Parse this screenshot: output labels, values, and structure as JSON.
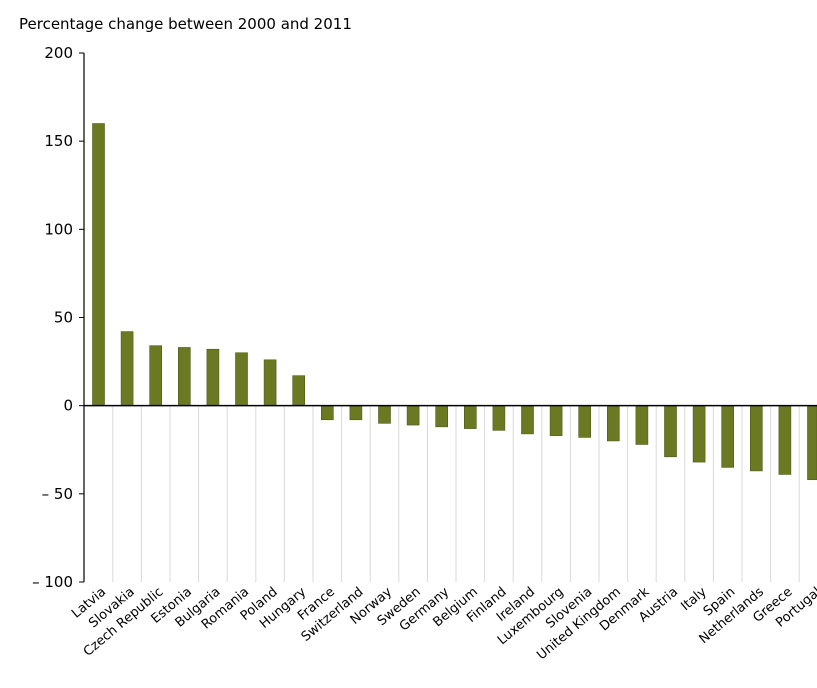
{
  "chart_data": {
    "type": "bar",
    "ylabel": "Percentage change between 2000 and 2011",
    "ylim": [
      -100,
      200
    ],
    "yticks": [
      200,
      150,
      100,
      50,
      0,
      -50,
      -100
    ],
    "ytick_labels": [
      "200",
      "150",
      "100",
      "50",
      "0",
      "– 50",
      "– 100"
    ],
    "categories": [
      "Latvia",
      "Slovakia",
      "Czech Republic",
      "Estonia",
      "Bulgaria",
      "Romania",
      "Poland",
      "Hungary",
      "France",
      "Switzerland",
      "Norway",
      "Sweden",
      "Germany",
      "Belgium",
      "Finland",
      "Ireland",
      "Luxembourg",
      "Slovenia",
      "United Kingdom",
      "Denmark",
      "Austria",
      "Italy",
      "Spain",
      "Netherlands",
      "Greece",
      "Portugal"
    ],
    "values": [
      160,
      42,
      34,
      33,
      32,
      30,
      26,
      17,
      -8,
      -8,
      -10,
      -11,
      -12,
      -13,
      -14,
      -16,
      -17,
      -18,
      -20,
      -22,
      -29,
      -32,
      -35,
      -37,
      -39,
      -42
    ],
    "grid": "vertical-category",
    "legend": "none",
    "bar_color": "#6b7a22",
    "bar_edge_color": "#4d5816",
    "grid_color": "#d9d9d9"
  }
}
